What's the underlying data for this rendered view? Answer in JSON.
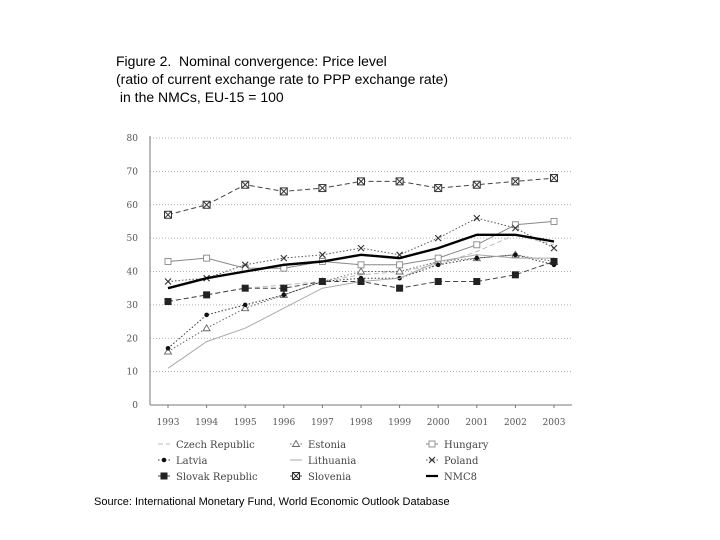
{
  "page": {
    "title_lines": [
      "Figure 2.  Nominal convergence: Price level",
      "(ratio of current exchange rate to PPP exchange rate)",
      " in the NMCs, EU-15 = 100"
    ],
    "source": "Source: International Monetary Fund, World Economic Outlook Database"
  },
  "chart_data": {
    "type": "line",
    "title": "Nominal convergence: Price level (ratio of current exchange rate to PPP exchange rate) in the NMCs, EU-15 = 100",
    "xlabel": "",
    "ylabel": "",
    "ylim": [
      0,
      80
    ],
    "yticks": [
      0,
      10,
      20,
      30,
      40,
      50,
      60,
      70,
      80
    ],
    "categories": [
      "1993",
      "1994",
      "1995",
      "1996",
      "1997",
      "1998",
      "1999",
      "2000",
      "2001",
      "2002",
      "2003"
    ],
    "grid": "horizontal dotted",
    "series": [
      {
        "name": "Czech Republic",
        "marker": "none",
        "style": "dash",
        "color": "#bbbbbb",
        "values": [
          31,
          33,
          35,
          36,
          37,
          39,
          40,
          42,
          46,
          51,
          48
        ]
      },
      {
        "name": "Estonia",
        "marker": "triangle",
        "style": "dot",
        "color": "#666666",
        "values": [
          16,
          23,
          29,
          33,
          37,
          40,
          40,
          43,
          44,
          45,
          43
        ]
      },
      {
        "name": "Hungary",
        "marker": "square",
        "style": "solid",
        "color": "#888888",
        "values": [
          43,
          44,
          41,
          41,
          43,
          42,
          42,
          44,
          48,
          54,
          55
        ]
      },
      {
        "name": "Latvia",
        "marker": "dot",
        "style": "dot",
        "color": "#333333",
        "values": [
          17,
          27,
          30,
          33,
          37,
          38,
          38,
          42,
          44,
          45,
          42
        ]
      },
      {
        "name": "Lithuania",
        "marker": "none",
        "style": "solid",
        "color": "#aaaaaa",
        "values": [
          11,
          19,
          23,
          29,
          35,
          37,
          38,
          43,
          45,
          44,
          44
        ]
      },
      {
        "name": "Poland",
        "marker": "x",
        "style": "dot",
        "color": "#555555",
        "values": [
          37,
          38,
          42,
          44,
          45,
          47,
          45,
          50,
          56,
          53,
          47
        ]
      },
      {
        "name": "Slovak Republic",
        "marker": "filled-square",
        "style": "dash",
        "color": "#444444",
        "values": [
          31,
          33,
          35,
          35,
          37,
          37,
          35,
          37,
          37,
          39,
          43
        ]
      },
      {
        "name": "Slovenia",
        "marker": "hatched-square",
        "style": "dash",
        "color": "#444444",
        "values": [
          57,
          60,
          66,
          64,
          65,
          67,
          67,
          65,
          66,
          67,
          68
        ]
      },
      {
        "name": "NMC8",
        "marker": "none",
        "style": "thick",
        "color": "#000000",
        "values": [
          35,
          38,
          40,
          42,
          43,
          45,
          44,
          47,
          51,
          51,
          49
        ]
      }
    ]
  }
}
